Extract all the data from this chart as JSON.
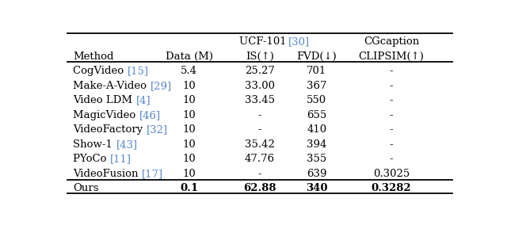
{
  "header_row1_text": "UCF-101 ",
  "header_row1_cite": "[30]",
  "header_row1_right": "CGcaption",
  "header_row2": [
    "Method",
    "Data (M)",
    "IS(↑)",
    "FVD(↓)",
    "CLIPSIM(↑)"
  ],
  "rows": [
    {
      "method": "CogVideo",
      "cite": "[15]",
      "data": "5.4",
      "is": "25.27",
      "fvd": "701",
      "clip": "-"
    },
    {
      "method": "Make-A-Video",
      "cite": "[29]",
      "data": "10",
      "is": "33.00",
      "fvd": "367",
      "clip": "-"
    },
    {
      "method": "Video LDM",
      "cite": "[4]",
      "data": "10",
      "is": "33.45",
      "fvd": "550",
      "clip": "-"
    },
    {
      "method": "MagicVideo",
      "cite": "[46]",
      "data": "10",
      "is": "-",
      "fvd": "655",
      "clip": "-"
    },
    {
      "method": "VideoFactory",
      "cite": "[32]",
      "data": "10",
      "is": "-",
      "fvd": "410",
      "clip": "-"
    },
    {
      "method": "Show-1",
      "cite": "[43]",
      "data": "10",
      "is": "35.42",
      "fvd": "394",
      "clip": "-"
    },
    {
      "method": "PYoCo",
      "cite": "[11]",
      "data": "10",
      "is": "47.76",
      "fvd": "355",
      "clip": "-"
    },
    {
      "method": "VideoFusion",
      "cite": "[17]",
      "data": "10",
      "is": "-",
      "fvd": "639",
      "clip": "0.3025"
    }
  ],
  "last_row": {
    "method": "Ours",
    "cite": "",
    "data": "0.1",
    "is": "62.88",
    "fvd": "340",
    "clip": "0.3282"
  },
  "text_color": "#000000",
  "cite_color": "#5588cc",
  "bg_color": "#ffffff",
  "fs": 9.5,
  "figsize": [
    6.4,
    2.84
  ],
  "dpi": 100
}
